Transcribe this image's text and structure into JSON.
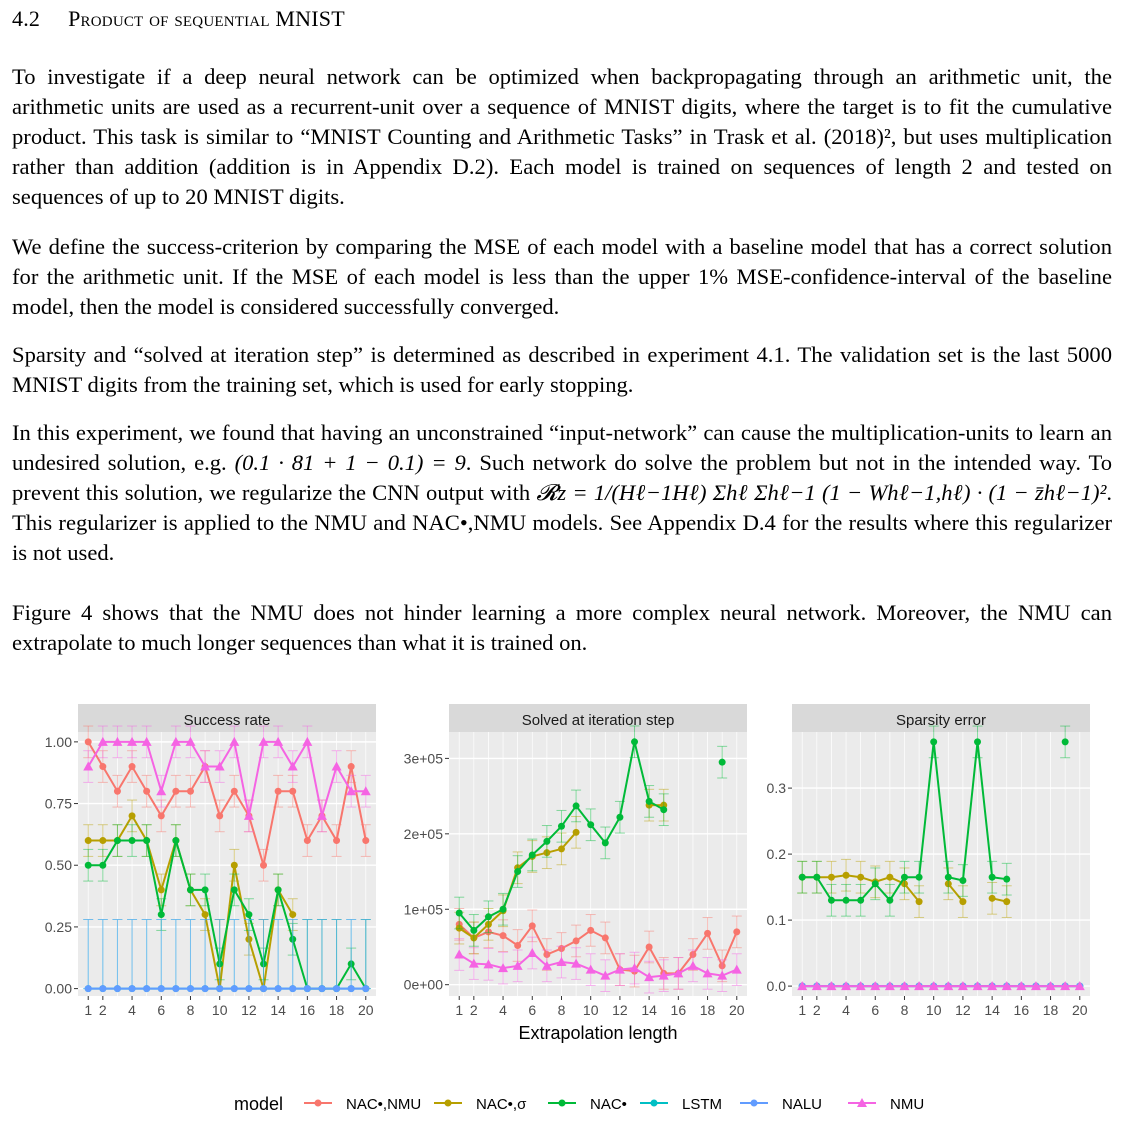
{
  "section": {
    "number": "4.2",
    "title_a": "Product of sequential ",
    "title_b": "MNIST"
  },
  "paragraphs": {
    "p1": "To investigate if a deep neural network can be optimized when backpropagating through an arithmetic unit, the arithmetic units are used as a recurrent-unit over a sequence of MNIST digits, where the target is to fit the cumulative product. This task is similar to “MNIST Counting and Arithmetic Tasks” in Trask et al. (2018)², but uses multiplication rather than addition (addition is in Appendix D.2). Each model is trained on sequences of length 2 and tested on sequences of up to 20 MNIST digits.",
    "p2": "We define the success-criterion by comparing the MSE of each model with a baseline model that has a correct solution for the arithmetic unit. If the MSE of each model is less than the upper 1% MSE-confidence-interval of the baseline model, then the model is considered successfully converged.",
    "p3": "Sparsity and “solved at iteration step” is determined as described in experiment 4.1. The validation set is the last 5000 MNIST digits from the training set, which is used for early stopping.",
    "p4a": "In this experiment, we found that having an unconstrained “input-network” can cause the multiplication-units to learn an undesired solution, e.g. ",
    "p4math": "(0.1 · 81 + 1 − 0.1) = 9",
    "p4b": ". Such network do solve the problem but not in the intended way. To prevent this solution, we regularize the CNN output with ",
    "p4reg": "𝓡z = 1/(Hℓ−1Hℓ) Σhℓ Σhℓ−1 (1 − Whℓ−1,hℓ) · (1 − z̄hℓ−1)²",
    "p4c": ". This regularizer is applied to the NMU and NAC•,NMU models. See Appendix D.4 for the results where this regularizer is not used.",
    "p5": "Figure 4 shows that the NMU does not hinder learning a more complex neural network. Moreover, the NMU can extrapolate to much longer sequences than what it is trained on."
  },
  "chart_data": [
    {
      "type": "line",
      "title": "Success rate",
      "xlabel": "",
      "ylabel": "",
      "x": [
        1,
        2,
        3,
        4,
        5,
        6,
        7,
        8,
        9,
        10,
        11,
        12,
        13,
        14,
        15,
        16,
        17,
        18,
        19,
        20
      ],
      "xticks": [
        "1",
        "2",
        "4",
        "6",
        "8",
        "10",
        "12",
        "14",
        "16",
        "18",
        "20"
      ],
      "yticks": [
        "0.00",
        "0.25",
        "0.50",
        "0.75",
        "1.00"
      ],
      "ylim": [
        -0.03,
        1.04
      ],
      "grid": true,
      "series": [
        {
          "name": "NAC•,NMU",
          "color": "#F8766D",
          "values": [
            1.0,
            0.9,
            0.8,
            0.9,
            0.8,
            0.7,
            0.8,
            0.8,
            0.9,
            0.7,
            0.8,
            0.7,
            0.5,
            0.8,
            0.8,
            0.6,
            0.7,
            0.6,
            0.9,
            0.6
          ]
        },
        {
          "name": "NAC•,σ",
          "color": "#B79F00",
          "values": [
            0.6,
            0.6,
            0.6,
            0.7,
            0.6,
            0.4,
            0.6,
            0.4,
            0.3,
            0.0,
            0.5,
            0.2,
            0.0,
            0.4,
            0.3,
            null,
            null,
            null,
            null,
            null
          ]
        },
        {
          "name": "NAC•",
          "color": "#00BA38",
          "values": [
            0.5,
            0.5,
            0.6,
            0.6,
            0.6,
            0.3,
            0.6,
            0.4,
            0.4,
            0.1,
            0.4,
            0.3,
            0.1,
            0.4,
            0.2,
            0.0,
            0.0,
            0.0,
            0.1,
            0.0
          ]
        },
        {
          "name": "LSTM",
          "color": "#00BFC4",
          "values": [
            0,
            0,
            0,
            0,
            0,
            0,
            0,
            0,
            0,
            0,
            0,
            0,
            0,
            0,
            0,
            0,
            0,
            0,
            0,
            0
          ]
        },
        {
          "name": "NALU",
          "color": "#619CFF",
          "values": [
            0,
            0,
            0,
            0,
            0,
            0,
            0,
            0,
            0,
            0,
            0,
            0,
            0,
            0,
            0,
            0,
            0,
            0,
            0,
            0
          ]
        },
        {
          "name": "NMU",
          "color": "#F564E3",
          "values": [
            0.9,
            1.0,
            1.0,
            1.0,
            1.0,
            0.8,
            1.0,
            1.0,
            0.9,
            0.9,
            1.0,
            0.7,
            1.0,
            1.0,
            0.9,
            1.0,
            0.7,
            0.9,
            0.8,
            0.8
          ]
        }
      ]
    },
    {
      "type": "line",
      "title": "Solved at iteration step",
      "xlabel": "Extrapolation length",
      "ylabel": "",
      "x": [
        1,
        2,
        3,
        4,
        5,
        6,
        7,
        8,
        9,
        10,
        11,
        12,
        13,
        14,
        15,
        16,
        17,
        18,
        19,
        20
      ],
      "xticks": [
        "1",
        "2",
        "4",
        "6",
        "8",
        "10",
        "12",
        "14",
        "16",
        "18",
        "20"
      ],
      "yticks": [
        "0e+00",
        "1e+05",
        "2e+05",
        "3e+05"
      ],
      "ylim": [
        -15000,
        335000
      ],
      "grid": true,
      "series": [
        {
          "name": "NAC•,NMU",
          "color": "#F8766D",
          "values": [
            80000,
            62000,
            70000,
            65000,
            52000,
            78000,
            40000,
            48000,
            58000,
            72000,
            62000,
            20000,
            18000,
            50000,
            15000,
            15000,
            40000,
            68000,
            25000,
            70000
          ]
        },
        {
          "name": "NAC•,σ",
          "color": "#B79F00",
          "values": [
            75000,
            62000,
            80000,
            98000,
            155000,
            170000,
            175000,
            180000,
            202000,
            null,
            null,
            null,
            null,
            238000,
            238000,
            null,
            null,
            null,
            null,
            null
          ]
        },
        {
          "name": "NAC•",
          "color": "#00BA38",
          "values": [
            95000,
            72000,
            90000,
            100000,
            150000,
            172000,
            190000,
            210000,
            237000,
            212000,
            188000,
            222000,
            322000,
            243000,
            232000,
            null,
            null,
            null,
            295000,
            null
          ]
        },
        {
          "name": "NMU",
          "color": "#F564E3",
          "values": [
            40000,
            28000,
            27000,
            22000,
            25000,
            42000,
            25000,
            30000,
            28000,
            20000,
            12000,
            20000,
            22000,
            10000,
            12000,
            15000,
            25000,
            15000,
            12000,
            20000
          ]
        }
      ]
    },
    {
      "type": "line",
      "title": "Sparsity error",
      "xlabel": "",
      "ylabel": "",
      "x": [
        1,
        2,
        3,
        4,
        5,
        6,
        7,
        8,
        9,
        10,
        11,
        12,
        13,
        14,
        15,
        16,
        17,
        18,
        19,
        20
      ],
      "xticks": [
        "1",
        "2",
        "4",
        "6",
        "8",
        "10",
        "12",
        "14",
        "16",
        "18",
        "20"
      ],
      "yticks": [
        "0.0",
        "0.1",
        "0.2",
        "0.3"
      ],
      "ylim": [
        -0.015,
        0.385
      ],
      "grid": true,
      "series": [
        {
          "name": "NAC•,NMU",
          "color": "#F8766D",
          "values": [
            0,
            0,
            0,
            0,
            0,
            0,
            0,
            0,
            0,
            0,
            0,
            0,
            0,
            0,
            0,
            0,
            0,
            0,
            0,
            0
          ]
        },
        {
          "name": "NAC•,σ",
          "color": "#B79F00",
          "values": [
            0.165,
            0.165,
            0.165,
            0.168,
            0.165,
            0.158,
            0.165,
            0.155,
            0.128,
            null,
            0.155,
            0.128,
            null,
            0.133,
            0.128,
            null,
            null,
            null,
            null,
            null
          ]
        },
        {
          "name": "NAC•",
          "color": "#00BA38",
          "values": [
            0.165,
            0.165,
            0.13,
            0.13,
            0.13,
            0.155,
            0.13,
            0.165,
            0.165,
            0.37,
            0.165,
            0.16,
            0.37,
            0.165,
            0.162,
            null,
            null,
            null,
            0.37,
            null
          ]
        },
        {
          "name": "LSTM",
          "color": "#00BFC4",
          "values": [
            0,
            0,
            0,
            0,
            0,
            0,
            0,
            0,
            0,
            0,
            0,
            0,
            0,
            0,
            0,
            0,
            0,
            0,
            0,
            0
          ]
        },
        {
          "name": "NALU",
          "color": "#619CFF",
          "values": [
            0,
            0,
            0,
            0,
            0,
            0,
            0,
            0,
            0,
            0,
            0,
            0,
            0,
            0,
            0,
            0,
            0,
            0,
            0,
            0
          ]
        },
        {
          "name": "NMU",
          "color": "#F564E3",
          "values": [
            0,
            0,
            0,
            0,
            0,
            0,
            0,
            0,
            0,
            0,
            0,
            0,
            0,
            0,
            0,
            0,
            0,
            0,
            0,
            0
          ]
        }
      ]
    }
  ],
  "legend": {
    "title": "model",
    "entries": [
      {
        "label": "NAC•,NMU",
        "color": "#F8766D"
      },
      {
        "label": "NAC•,σ",
        "color": "#B79F00"
      },
      {
        "label": "NAC•",
        "color": "#00BA38"
      },
      {
        "label": "LSTM",
        "color": "#00BFC4"
      },
      {
        "label": "NALU",
        "color": "#619CFF"
      },
      {
        "label": "NMU",
        "color": "#F564E3"
      }
    ]
  }
}
